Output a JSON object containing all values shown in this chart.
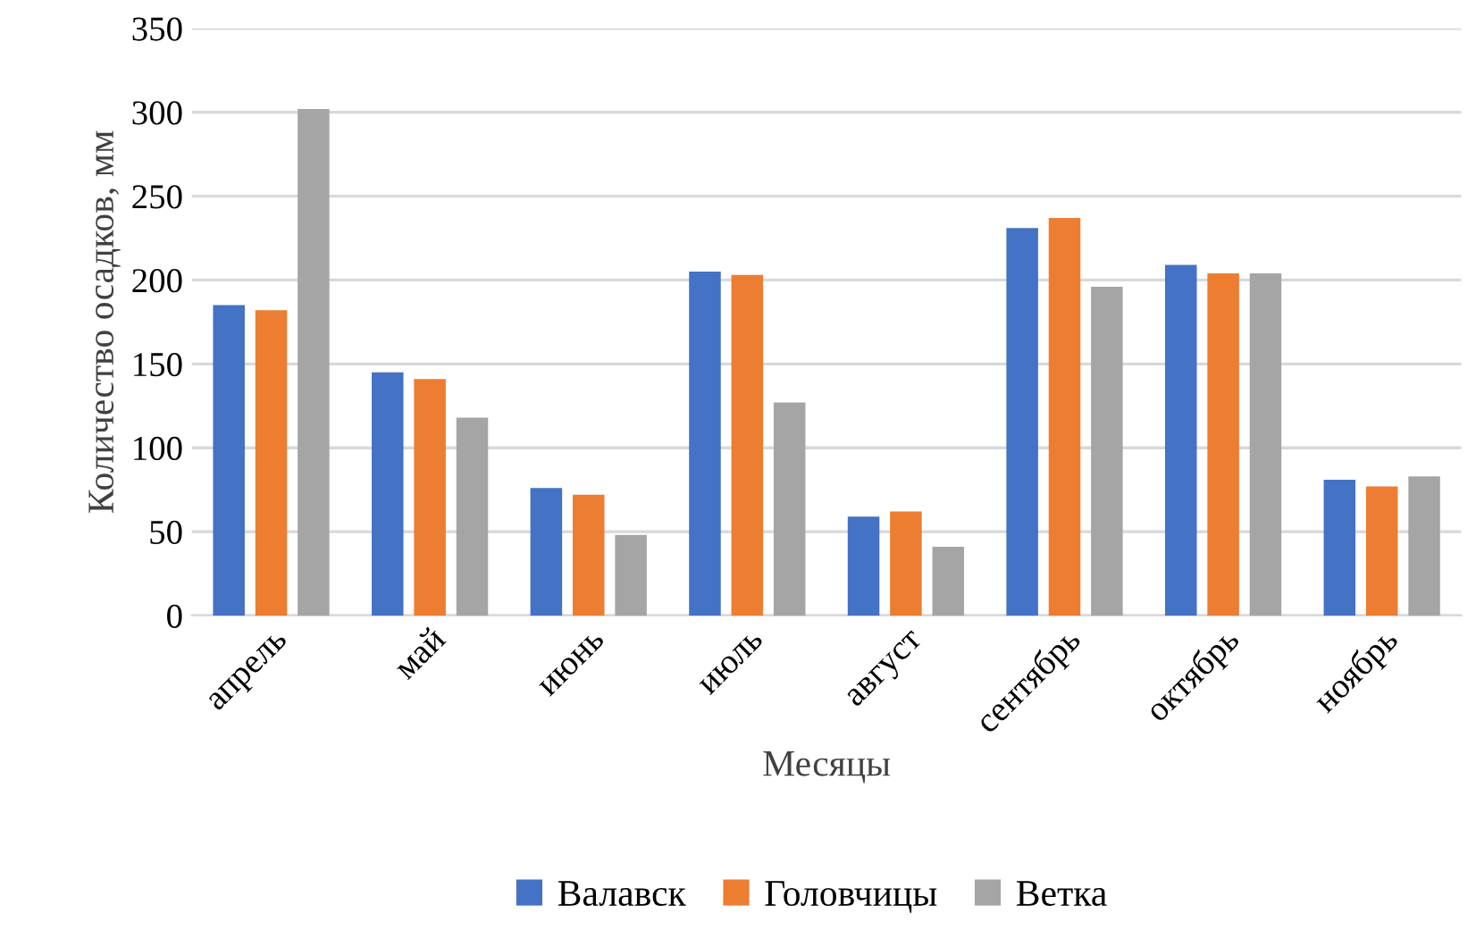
{
  "chart_data": {
    "type": "bar",
    "xlabel": "Месяцы",
    "ylabel": "Количество осадков, мм",
    "categories": [
      "апрель",
      "май",
      "июнь",
      "июль",
      "август",
      "сентябрь",
      "октябрь",
      "ноябрь"
    ],
    "series": [
      {
        "name": "Валавск",
        "color": "#4472c4",
        "values": [
          185,
          145,
          76,
          205,
          59,
          231,
          209,
          81
        ]
      },
      {
        "name": "Головчицы",
        "color": "#ed7d31",
        "values": [
          182,
          141,
          72,
          203,
          62,
          237,
          204,
          77
        ]
      },
      {
        "name": "Ветка",
        "color": "#a5a5a5",
        "values": [
          302,
          118,
          48,
          127,
          41,
          196,
          204,
          83
        ]
      }
    ],
    "ylim": [
      0,
      350
    ],
    "yticks": [
      0,
      50,
      100,
      150,
      200,
      250,
      300,
      350
    ],
    "grid": "y",
    "legend": "bottom"
  }
}
